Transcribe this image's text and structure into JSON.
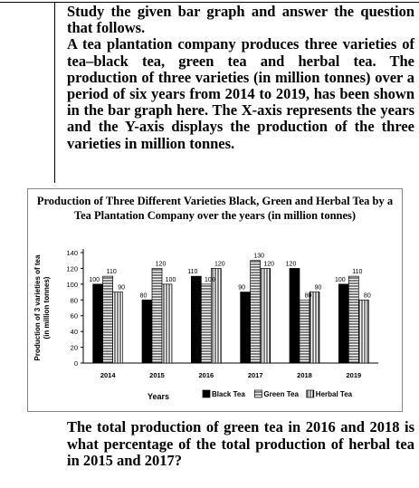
{
  "intro": {
    "line1": "Study the given bar graph and answer the question that follows.",
    "line2": "A tea plantation company produces three varieties of tea–black tea, green tea and herbal tea. The production of three varieties (in million tonnes) over a period of six years from 2014 to 2019, has been shown in the bar graph here. The X-axis represents the years and the Y-axis displays the production of the three varieties in million tonnes."
  },
  "question": "The total production of green tea in 2016 and 2018 is what percentage of the total production of herbal tea in 2015 and 2017?",
  "chart_data": {
    "type": "bar",
    "title": "Production of Three Different Varieties Black, Green and Herbal Tea by a Tea Plantation Company over the years (in million tonnes)",
    "xlabel": "Years",
    "ylabel": "Production of 3 varieties of tea (in million tonnes)",
    "categories": [
      "2014",
      "2015",
      "2016",
      "2017",
      "2018",
      "2019"
    ],
    "ylim": [
      0,
      140
    ],
    "yticks": [
      0,
      20,
      40,
      60,
      80,
      100,
      120,
      140
    ],
    "grid": false,
    "legend_position": "bottom",
    "series": [
      {
        "name": "Black Tea",
        "values": [
          100,
          80,
          110,
          90,
          120,
          100
        ],
        "color": "#000000",
        "pattern": "solid"
      },
      {
        "name": "Green Tea",
        "values": [
          110,
          120,
          100,
          130,
          80,
          110
        ],
        "color": "#000000",
        "pattern": "horizontal-lines"
      },
      {
        "name": "Herbal Tea",
        "values": [
          90,
          100,
          120,
          120,
          90,
          80
        ],
        "color": "#000000",
        "pattern": "vertical-lines"
      }
    ]
  }
}
